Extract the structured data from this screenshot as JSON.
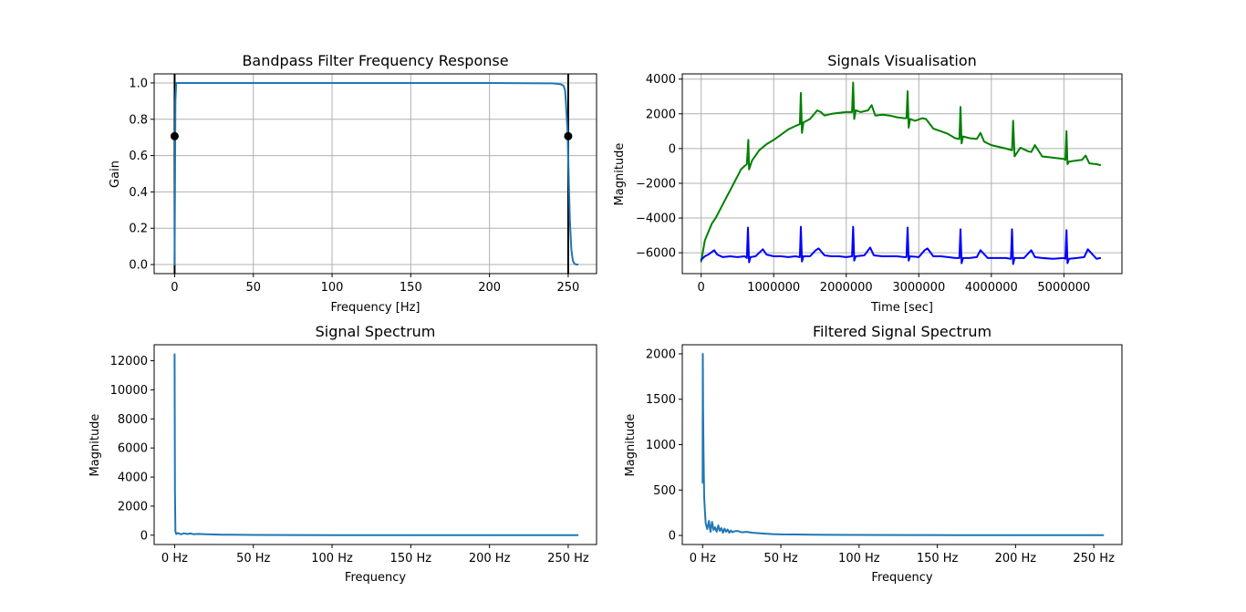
{
  "colors": {
    "default_line": "#1f77b4",
    "raw_signal": "#008000",
    "filtered_signal": "#0000ff",
    "cutoff": "#000000",
    "grid": "#b0b0b0"
  },
  "chart_data": [
    {
      "id": "freq_response",
      "type": "line",
      "title": "Bandpass Filter Frequency Response",
      "xlabel": "Frequency [Hz]",
      "ylabel": "Gain",
      "xlim": [
        -13,
        268
      ],
      "ylim": [
        -0.05,
        1.05
      ],
      "grid": true,
      "xticks": [
        0,
        50,
        100,
        150,
        200,
        250
      ],
      "xtick_labels": [
        "0",
        "50",
        "100",
        "150",
        "200",
        "250"
      ],
      "yticks": [
        0.0,
        0.2,
        0.4,
        0.6,
        0.8,
        1.0
      ],
      "ytick_labels": [
        "0.0",
        "0.2",
        "0.4",
        "0.6",
        "0.8",
        "1.0"
      ],
      "series": [
        {
          "color": "#1f77b4",
          "x": [
            0,
            0.5,
            1,
            2,
            5,
            10,
            50,
            100,
            150,
            200,
            240,
            245,
            247,
            248,
            248.5,
            249,
            249.5,
            250,
            250.5,
            251,
            252,
            253,
            254,
            255,
            256
          ],
          "y": [
            0.0,
            0.9,
            1.0,
            1.0,
            1.0,
            1.0,
            1.0,
            1.0,
            1.0,
            1.0,
            0.998,
            0.993,
            0.985,
            0.96,
            0.9,
            0.82,
            0.74,
            0.6,
            0.42,
            0.25,
            0.08,
            0.02,
            0.005,
            0.0,
            0.0
          ]
        }
      ],
      "vlines": [
        0,
        250
      ],
      "markers": [
        {
          "x": 0,
          "y": 0.707
        },
        {
          "x": 250,
          "y": 0.707
        }
      ]
    },
    {
      "id": "signals",
      "type": "line",
      "title": "Signals Visualisation",
      "xlabel": "Time [sec]",
      "ylabel": "Magnitude",
      "xlim": [
        -260000,
        5800000
      ],
      "ylim": [
        -7200,
        4300
      ],
      "grid": true,
      "xticks": [
        0,
        1000000,
        2000000,
        3000000,
        4000000,
        5000000
      ],
      "xtick_labels": [
        "0",
        "1000000",
        "2000000",
        "3000000",
        "4000000",
        "5000000"
      ],
      "yticks": [
        -6000,
        -4000,
        -2000,
        0,
        2000,
        4000
      ],
      "ytick_labels": [
        "−6000",
        "−4000",
        "−2000",
        "0",
        "2000",
        "4000"
      ],
      "series": [
        {
          "color": "#008000",
          "x": [
            0,
            50000,
            100000,
            150000,
            200000,
            300000,
            400000,
            500000,
            550000,
            600000,
            630000,
            650000,
            660000,
            680000,
            700000,
            800000,
            900000,
            1000000,
            1100000,
            1200000,
            1300000,
            1360000,
            1375000,
            1390000,
            1410000,
            1500000,
            1600000,
            1650000,
            1700000,
            1800000,
            1900000,
            2000000,
            2080000,
            2095000,
            2110000,
            2130000,
            2200000,
            2300000,
            2350000,
            2400000,
            2500000,
            2600000,
            2700000,
            2800000,
            2830000,
            2845000,
            2860000,
            2880000,
            2950000,
            3050000,
            3100000,
            3200000,
            3300000,
            3400000,
            3500000,
            3560000,
            3575000,
            3590000,
            3610000,
            3700000,
            3800000,
            3850000,
            3900000,
            4000000,
            4100000,
            4200000,
            4270000,
            4285000,
            4300000,
            4320000,
            4400000,
            4500000,
            4550000,
            4600000,
            4700000,
            4800000,
            4900000,
            5000000,
            5020000,
            5035000,
            5050000,
            5070000,
            5150000,
            5250000,
            5300000,
            5350000,
            5450000,
            5500000
          ],
          "y": [
            -6500,
            -5300,
            -4800,
            -4300,
            -4000,
            -3200,
            -2400,
            -1600,
            -1200,
            -1000,
            -900,
            500,
            -1200,
            -950,
            -700,
            -100,
            250,
            500,
            800,
            1100,
            1300,
            1400,
            3200,
            900,
            1500,
            1700,
            2200,
            2100,
            1900,
            2000,
            2050,
            2100,
            2100,
            3800,
            1700,
            2200,
            2100,
            2200,
            2500,
            1900,
            1950,
            1900,
            1800,
            1750,
            1750,
            3300,
            1200,
            1700,
            1600,
            1750,
            1700,
            1150,
            1000,
            850,
            600,
            550,
            2400,
            300,
            700,
            600,
            550,
            900,
            400,
            200,
            100,
            0,
            -80,
            -100,
            1600,
            -450,
            50,
            -150,
            -200,
            200,
            -450,
            -500,
            -550,
            -600,
            -650,
            1000,
            -900,
            -750,
            -700,
            -650,
            -400,
            -850,
            -900,
            -950
          ]
        },
        {
          "color": "#0000ff",
          "x": [
            0,
            50000,
            100000,
            180000,
            220000,
            300000,
            400000,
            500000,
            600000,
            630000,
            645000,
            660000,
            680000,
            750000,
            850000,
            900000,
            1000000,
            1100000,
            1200000,
            1300000,
            1360000,
            1375000,
            1390000,
            1410000,
            1500000,
            1580000,
            1620000,
            1700000,
            1800000,
            1900000,
            2000000,
            2080000,
            2095000,
            2110000,
            2130000,
            2250000,
            2330000,
            2380000,
            2500000,
            2600000,
            2700000,
            2800000,
            2830000,
            2845000,
            2860000,
            2880000,
            3000000,
            3080000,
            3120000,
            3200000,
            3300000,
            3400000,
            3500000,
            3560000,
            3575000,
            3590000,
            3610000,
            3700000,
            3800000,
            3850000,
            3950000,
            4100000,
            4200000,
            4270000,
            4285000,
            4300000,
            4320000,
            4450000,
            4550000,
            4600000,
            4700000,
            4850000,
            5000000,
            5020000,
            5035000,
            5050000,
            5070000,
            5180000,
            5280000,
            5330000,
            5450000,
            5500000
          ],
          "y": [
            -6400,
            -6200,
            -6100,
            -5850,
            -6100,
            -6250,
            -6200,
            -6250,
            -6200,
            -6300,
            -4550,
            -6550,
            -6250,
            -6200,
            -5800,
            -6100,
            -6200,
            -6200,
            -6250,
            -6200,
            -6250,
            -4500,
            -6500,
            -6200,
            -6200,
            -5850,
            -5750,
            -6150,
            -6200,
            -6200,
            -6250,
            -6200,
            -4500,
            -6450,
            -6200,
            -6150,
            -5700,
            -6150,
            -6200,
            -6200,
            -6200,
            -6250,
            -6250,
            -4550,
            -6450,
            -6200,
            -6250,
            -5850,
            -5750,
            -6200,
            -6200,
            -6250,
            -6300,
            -6300,
            -4650,
            -6600,
            -6300,
            -6300,
            -6250,
            -5850,
            -6300,
            -6300,
            -6300,
            -6350,
            -4650,
            -6650,
            -6300,
            -6300,
            -5850,
            -6250,
            -6300,
            -6350,
            -6300,
            -6350,
            -4700,
            -6600,
            -6350,
            -6300,
            -6250,
            -5800,
            -6350,
            -6300
          ]
        }
      ]
    },
    {
      "id": "signal_spectrum",
      "type": "line",
      "title": "Signal Spectrum",
      "xlabel": "Frequency",
      "ylabel": "Magnitude",
      "xlim": [
        -13,
        268
      ],
      "ylim": [
        -640,
        13100
      ],
      "grid": false,
      "xticks": [
        0,
        50,
        100,
        150,
        200,
        250
      ],
      "xtick_labels": [
        "0 Hz",
        "50 Hz",
        "100 Hz",
        "150 Hz",
        "200 Hz",
        "250 Hz"
      ],
      "yticks": [
        0,
        2000,
        4000,
        6000,
        8000,
        10000,
        12000
      ],
      "ytick_labels": [
        "0",
        "2000",
        "4000",
        "6000",
        "8000",
        "10000",
        "12000"
      ],
      "series": [
        {
          "color": "#1f77b4",
          "x": [
            0,
            0.2,
            0.5,
            1,
            2,
            4,
            6,
            8,
            10,
            12,
            15,
            20,
            30,
            50,
            100,
            150,
            200,
            256
          ],
          "y": [
            12450,
            3000,
            250,
            80,
            150,
            60,
            130,
            80,
            120,
            70,
            90,
            60,
            40,
            20,
            8,
            5,
            3,
            2
          ]
        }
      ]
    },
    {
      "id": "filtered_spectrum",
      "type": "line",
      "title": "Filtered Signal Spectrum",
      "xlabel": "Frequency",
      "ylabel": "Magnitude",
      "xlim": [
        -13,
        268
      ],
      "ylim": [
        -100,
        2100
      ],
      "grid": false,
      "xticks": [
        0,
        50,
        100,
        150,
        200,
        250
      ],
      "xtick_labels": [
        "0 Hz",
        "50 Hz",
        "100 Hz",
        "150 Hz",
        "200 Hz",
        "250 Hz"
      ],
      "yticks": [
        0,
        500,
        1000,
        1500,
        2000
      ],
      "ytick_labels": [
        "0",
        "500",
        "1000",
        "1500",
        "2000"
      ],
      "series": [
        {
          "color": "#1f77b4",
          "x": [
            0,
            0.1,
            0.3,
            0.6,
            1,
            1.5,
            2,
            3,
            4,
            5,
            6,
            7,
            8,
            9,
            10,
            11,
            12,
            13,
            14,
            15,
            16,
            17,
            18,
            19,
            20,
            22,
            25,
            28,
            32,
            36,
            40,
            45,
            50,
            60,
            70,
            80,
            100,
            130,
            160,
            200,
            230,
            256
          ],
          "y": [
            580,
            2000,
            1400,
            900,
            420,
            250,
            130,
            70,
            160,
            40,
            150,
            60,
            90,
            40,
            110,
            50,
            80,
            30,
            75,
            40,
            65,
            30,
            55,
            35,
            45,
            50,
            35,
            40,
            30,
            25,
            20,
            15,
            12,
            10,
            8,
            6,
            5,
            4,
            3,
            3,
            2,
            2
          ]
        }
      ]
    }
  ]
}
